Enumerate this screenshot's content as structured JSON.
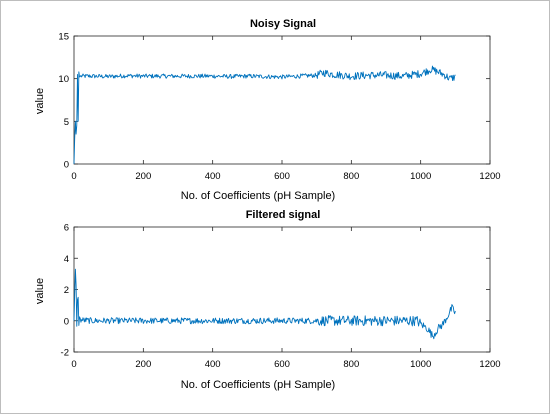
{
  "chart_data": [
    {
      "type": "line",
      "title": "Noisy Signal",
      "xlabel": "No. of Coefficients (pH Sample)",
      "ylabel": "value",
      "xlim": [
        0,
        1200
      ],
      "ylim": [
        0,
        15
      ],
      "xticks": [
        "0",
        "200",
        "400",
        "600",
        "800",
        "1000",
        "1200"
      ],
      "yticks": [
        "0",
        "5",
        "10",
        "15"
      ],
      "grid": false,
      "series": [
        {
          "color": "#0072BD",
          "points": [
            [
              0,
              0
            ],
            [
              2,
              3
            ],
            [
              4,
              5
            ],
            [
              6,
              3.5
            ],
            [
              8,
              4.5
            ],
            [
              10,
              10.5
            ],
            [
              12,
              5
            ],
            [
              14,
              10.8
            ],
            [
              16,
              10.2
            ],
            [
              20,
              10.3
            ],
            [
              50,
              10.3
            ],
            [
              100,
              10.25
            ],
            [
              150,
              10.35
            ],
            [
              200,
              10.3
            ],
            [
              250,
              10.3
            ],
            [
              300,
              10.3
            ],
            [
              350,
              10.3
            ],
            [
              400,
              10.3
            ],
            [
              450,
              10.25
            ],
            [
              500,
              10.3
            ],
            [
              550,
              10.25
            ],
            [
              600,
              10.2
            ],
            [
              650,
              10.3
            ],
            [
              700,
              10.4
            ],
            [
              720,
              10.7
            ],
            [
              750,
              10.5
            ],
            [
              800,
              10.3
            ],
            [
              850,
              10.4
            ],
            [
              900,
              10.4
            ],
            [
              950,
              10.3
            ],
            [
              1000,
              10.6
            ],
            [
              1030,
              11.1
            ],
            [
              1050,
              10.8
            ],
            [
              1070,
              10.4
            ],
            [
              1085,
              10.0
            ],
            [
              1100,
              10.2
            ]
          ]
        }
      ]
    },
    {
      "type": "line",
      "title": "Filtered signal",
      "xlabel": "No. of Coefficients (pH Sample)",
      "ylabel": "value",
      "xlim": [
        0,
        1200
      ],
      "ylim": [
        -2,
        6
      ],
      "xticks": [
        "0",
        "200",
        "400",
        "600",
        "800",
        "1000",
        "1200"
      ],
      "yticks": [
        "-2",
        "0",
        "2",
        "4",
        "6"
      ],
      "grid": false,
      "series": [
        {
          "color": "#0072BD",
          "points": [
            [
              0,
              0
            ],
            [
              3,
              2.5
            ],
            [
              5,
              4.1
            ],
            [
              7,
              0.5
            ],
            [
              9,
              -1.2
            ],
            [
              11,
              3.9
            ],
            [
              13,
              -0.9
            ],
            [
              15,
              0.3
            ],
            [
              20,
              0.05
            ],
            [
              50,
              0.0
            ],
            [
              100,
              0.0
            ],
            [
              150,
              0.0
            ],
            [
              200,
              0.0
            ],
            [
              300,
              0.0
            ],
            [
              400,
              0.0
            ],
            [
              500,
              0.0
            ],
            [
              600,
              0.0
            ],
            [
              700,
              0.0
            ],
            [
              800,
              0.0
            ],
            [
              900,
              0.0
            ],
            [
              950,
              0.0
            ],
            [
              990,
              0.0
            ],
            [
              1000,
              -0.2
            ],
            [
              1020,
              -0.5
            ],
            [
              1035,
              -1.0
            ],
            [
              1050,
              -0.5
            ],
            [
              1065,
              -0.2
            ],
            [
              1080,
              0.4
            ],
            [
              1090,
              0.8
            ],
            [
              1100,
              0.5
            ]
          ]
        }
      ]
    }
  ]
}
